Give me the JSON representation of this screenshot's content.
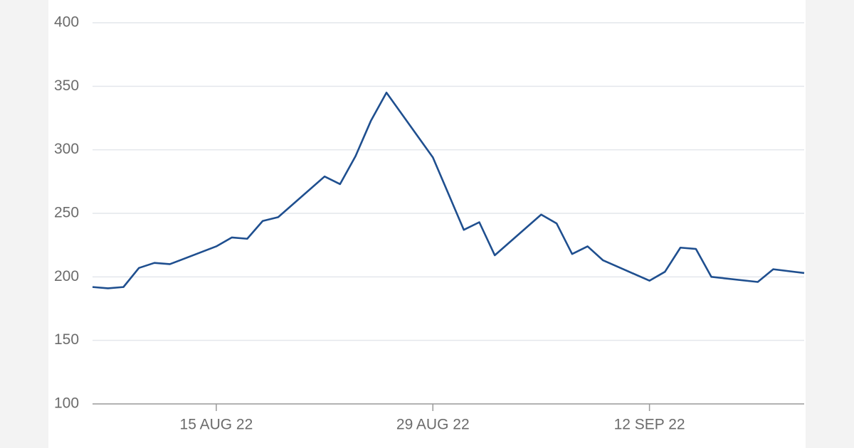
{
  "chart_data": {
    "type": "line",
    "x": [
      "2022-08-07",
      "2022-08-08",
      "2022-08-09",
      "2022-08-10",
      "2022-08-11",
      "2022-08-12",
      "2022-08-15",
      "2022-08-16",
      "2022-08-17",
      "2022-08-18",
      "2022-08-19",
      "2022-08-22",
      "2022-08-23",
      "2022-08-24",
      "2022-08-25",
      "2022-08-26",
      "2022-08-29",
      "2022-08-31",
      "2022-09-01",
      "2022-09-02",
      "2022-09-05",
      "2022-09-06",
      "2022-09-07",
      "2022-09-08",
      "2022-09-09",
      "2022-09-12",
      "2022-09-13",
      "2022-09-14",
      "2022-09-15",
      "2022-09-16",
      "2022-09-19",
      "2022-09-20",
      "2022-09-22"
    ],
    "series": [
      {
        "color": "#1f4f8f",
        "values": [
          192,
          191,
          192,
          207,
          211,
          210,
          224,
          231,
          230,
          244,
          247,
          279,
          273,
          295,
          323,
          345,
          294,
          237,
          243,
          217,
          249,
          242,
          218,
          224,
          213,
          197,
          204,
          223,
          222,
          200,
          196,
          206,
          203
        ]
      }
    ],
    "xlim": [
      "2022-08-07",
      "2022-09-22"
    ],
    "xticks": [
      {
        "value": "2022-08-15",
        "label": "15 AUG 22"
      },
      {
        "value": "2022-08-29",
        "label": "29 AUG 22"
      },
      {
        "value": "2022-09-12",
        "label": "12 SEP 22"
      }
    ],
    "ylim": [
      100,
      400
    ],
    "yticks": [
      100,
      150,
      200,
      250,
      300,
      350,
      400
    ],
    "grid": true
  }
}
